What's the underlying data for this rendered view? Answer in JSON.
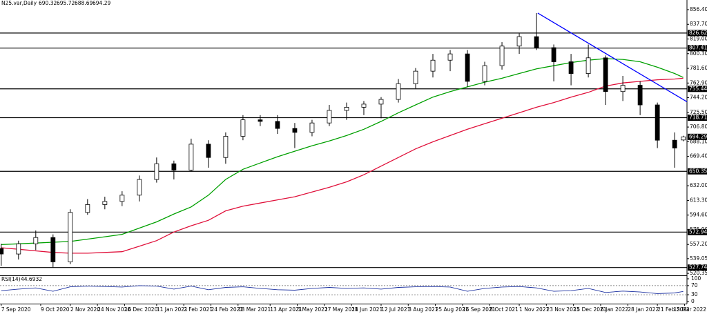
{
  "chart_data": {
    "type": "candlestick",
    "symbol": "N25.var,Daily",
    "xlim": [
      "2020-09-06",
      "2022-03-17"
    ],
    "ylim": [
      517.8,
      868.7
    ],
    "yticks": [
      {
        "value": 856.4,
        "label": "856.40"
      },
      {
        "value": 837.7,
        "label": "837.70"
      },
      {
        "value": 819,
        "label": "819.00"
      },
      {
        "value": 800.3,
        "label": "800.30"
      },
      {
        "value": 781.6,
        "label": "781.60"
      },
      {
        "value": 762.9,
        "label": "762.90"
      },
      {
        "value": 744.2,
        "label": "744.20"
      },
      {
        "value": 725.5,
        "label": "725.50"
      },
      {
        "value": 706.8,
        "label": "706.80"
      },
      {
        "value": 688.1,
        "label": "688.10"
      },
      {
        "value": 669.4,
        "label": "669.40"
      },
      {
        "value": 632,
        "label": "632.00"
      },
      {
        "value": 613.3,
        "label": "613.30"
      },
      {
        "value": 594.6,
        "label": "594.60"
      },
      {
        "value": 575.9,
        "label": "575.90"
      },
      {
        "value": 557.2,
        "label": "557.20"
      },
      539.05,
      520.35
    ],
    "xticks": [
      {
        "value": "2020-09-07",
        "label": "7 Sep 2020"
      },
      {
        "value": "2020-10-09",
        "label": "9 Oct 2020"
      },
      {
        "value": "2020-11-02",
        "label": "2 Nov 2020"
      },
      {
        "value": "2020-11-24",
        "label": "24 Nov 2020"
      },
      {
        "value": "2020-12-16",
        "label": "16 Dec 2020"
      },
      {
        "value": "2021-01-11",
        "label": "11 Jan 2021"
      },
      {
        "value": "2021-02-02",
        "label": "2 Feb 2021"
      },
      {
        "value": "2021-02-24",
        "label": "24 Feb 2021"
      },
      {
        "value": "2021-03-18",
        "label": "18 Mar 2021"
      },
      {
        "value": "2021-04-13",
        "label": "13 Apr 2021"
      },
      {
        "value": "2021-05-05",
        "label": "5 May 2021"
      },
      {
        "value": "2021-05-27",
        "label": "27 May 2021"
      },
      {
        "value": "2021-06-18",
        "label": "18 Jun 2021"
      },
      {
        "value": "2021-07-12",
        "label": "12 Jul 2021"
      },
      {
        "value": "2021-08-03",
        "label": "3 Aug 2021"
      },
      {
        "value": "2021-08-25",
        "label": "25 Aug 2021"
      },
      {
        "value": "2021-09-16",
        "label": "16 Sep 2021"
      },
      {
        "value": "2021-10-08",
        "label": "8 Oct 2021"
      },
      {
        "value": "2021-11-01",
        "label": "1 Nov 2021"
      },
      {
        "value": "2021-11-23",
        "label": "23 Nov 2021"
      },
      {
        "value": "2021-12-15",
        "label": "15 Dec 2021"
      },
      {
        "value": "2022-01-06",
        "label": "6 Jan 2022"
      },
      {
        "value": "2022-01-28",
        "label": "28 Jan 2022"
      },
      {
        "value": "2022-02-21",
        "label": "21 Feb 2022"
      },
      {
        "value": "2022-03-15",
        "label": "15 Mar 2022"
      }
    ],
    "candles": {
      "x": [
        "2020-09-07",
        "2020-09-21",
        "2020-10-05",
        "2020-10-19",
        "2020-11-02",
        "2020-11-16",
        "2020-11-30",
        "2020-12-14",
        "2020-12-28",
        "2021-01-11",
        "2021-01-25",
        "2021-02-08",
        "2021-02-22",
        "2021-03-08",
        "2021-03-22",
        "2021-04-05",
        "2021-04-19",
        "2021-05-03",
        "2021-05-17",
        "2021-05-31",
        "2021-06-14",
        "2021-06-28",
        "2021-07-12",
        "2021-07-26",
        "2021-08-09",
        "2021-08-23",
        "2021-09-06",
        "2021-09-20",
        "2021-10-04",
        "2021-10-18",
        "2021-11-01",
        "2021-11-15",
        "2021-11-29",
        "2021-12-13",
        "2021-12-27",
        "2022-01-10",
        "2022-01-24",
        "2022-02-07",
        "2022-02-21",
        "2022-03-07",
        "2022-03-14"
      ],
      "open": [
        552,
        545,
        558,
        566,
        535,
        598,
        608,
        612,
        620,
        640,
        660,
        652,
        685,
        668,
        695,
        716,
        714,
        705,
        700,
        712,
        728,
        732,
        736,
        742,
        762,
        778,
        792,
        800,
        765,
        785,
        810,
        822,
        808,
        790,
        775,
        795,
        752,
        760,
        735,
        690,
        690.32
      ],
      "high": [
        558,
        562,
        575,
        570,
        602,
        615,
        618,
        625,
        645,
        668,
        664,
        692,
        690,
        700,
        722,
        722,
        722,
        712,
        716,
        735,
        738,
        740,
        745,
        768,
        782,
        800,
        805,
        805,
        790,
        815,
        826,
        852,
        812,
        800,
        812,
        798,
        772,
        765,
        738,
        700,
        695.72
      ],
      "low": [
        530,
        538,
        550,
        528,
        532,
        595,
        602,
        606,
        612,
        636,
        640,
        650,
        655,
        660,
        690,
        708,
        698,
        680,
        695,
        708,
        716,
        722,
        718,
        738,
        756,
        770,
        778,
        758,
        760,
        780,
        800,
        805,
        765,
        760,
        770,
        735,
        740,
        722,
        680,
        655,
        688.69
      ],
      "close": [
        545,
        558,
        566,
        535,
        598,
        608,
        612,
        620,
        640,
        660,
        652,
        685,
        668,
        695,
        716,
        714,
        705,
        700,
        712,
        728,
        732,
        736,
        742,
        762,
        778,
        792,
        800,
        765,
        785,
        810,
        822,
        808,
        790,
        775,
        795,
        752,
        760,
        735,
        690,
        680,
        694.29
      ]
    },
    "ma": [
      {
        "color": "#00a000",
        "values": [
          557,
          558,
          559,
          560,
          561,
          564,
          567,
          570,
          578,
          586,
          596,
          605,
          620,
          640,
          653,
          661,
          669,
          676,
          683,
          689,
          696,
          704,
          714,
          725,
          735,
          745,
          752,
          758,
          764,
          769,
          775,
          781,
          785,
          789,
          792,
          794,
          793,
          790,
          783,
          775,
          770
        ]
      },
      {
        "color": "#e0103a",
        "values": [
          553,
          551,
          549,
          547,
          546,
          546,
          547,
          548,
          555,
          562,
          573,
          581,
          588,
          600,
          606,
          610,
          614,
          618,
          624,
          630,
          637,
          646,
          657,
          668,
          679,
          688,
          696,
          704,
          711,
          718,
          725,
          732,
          738,
          745,
          751,
          759,
          763,
          765,
          767,
          768,
          769
        ]
      }
    ],
    "levels": [
      826.62,
      807.41,
      755.44,
      718.71,
      650.35,
      572.94,
      527.74
    ],
    "trendline": {
      "color": "#0000ff",
      "x": [
        "2021-11-16",
        "2022-03-17"
      ],
      "values": [
        852,
        739
      ]
    },
    "rsi": {
      "name": "RSI(14)",
      "color": "#1a2fa0",
      "ylim": [
        0,
        100
      ],
      "yticks": [
        100,
        70,
        30,
        0
      ],
      "dashed": [
        70,
        30
      ],
      "values": [
        48,
        55,
        60,
        45,
        65,
        68,
        66,
        64,
        70,
        68,
        55,
        68,
        52,
        62,
        65,
        58,
        52,
        50,
        58,
        62,
        58,
        60,
        55,
        62,
        65,
        66,
        64,
        45,
        58,
        64,
        66,
        60,
        45,
        48,
        58,
        40,
        46,
        42,
        35,
        38,
        44.6932
      ]
    }
  }
}
